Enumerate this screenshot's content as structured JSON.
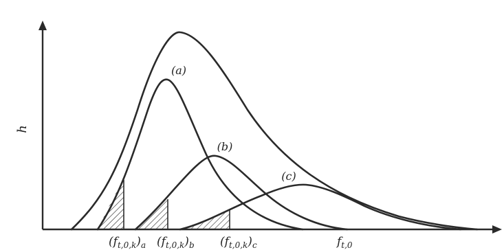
{
  "diagram": {
    "y_axis_label": "h",
    "curve_labels": {
      "a": "(a)",
      "b": "(b)",
      "c": "(c)"
    },
    "x_markers": {
      "a": {
        "main": "(f",
        "sub": "t,0,k",
        "close": ")",
        "tail": "a"
      },
      "b": {
        "main": "(f",
        "sub": "t,0,k",
        "close": ")",
        "tail": "b"
      },
      "c": {
        "main": "(f",
        "sub": "t,0,k",
        "close": ")",
        "tail": "c"
      },
      "f": {
        "main": "f",
        "sub": "t,0"
      }
    },
    "colors": {
      "ink": "#2a2a2a",
      "background": "#ffffff"
    }
  }
}
